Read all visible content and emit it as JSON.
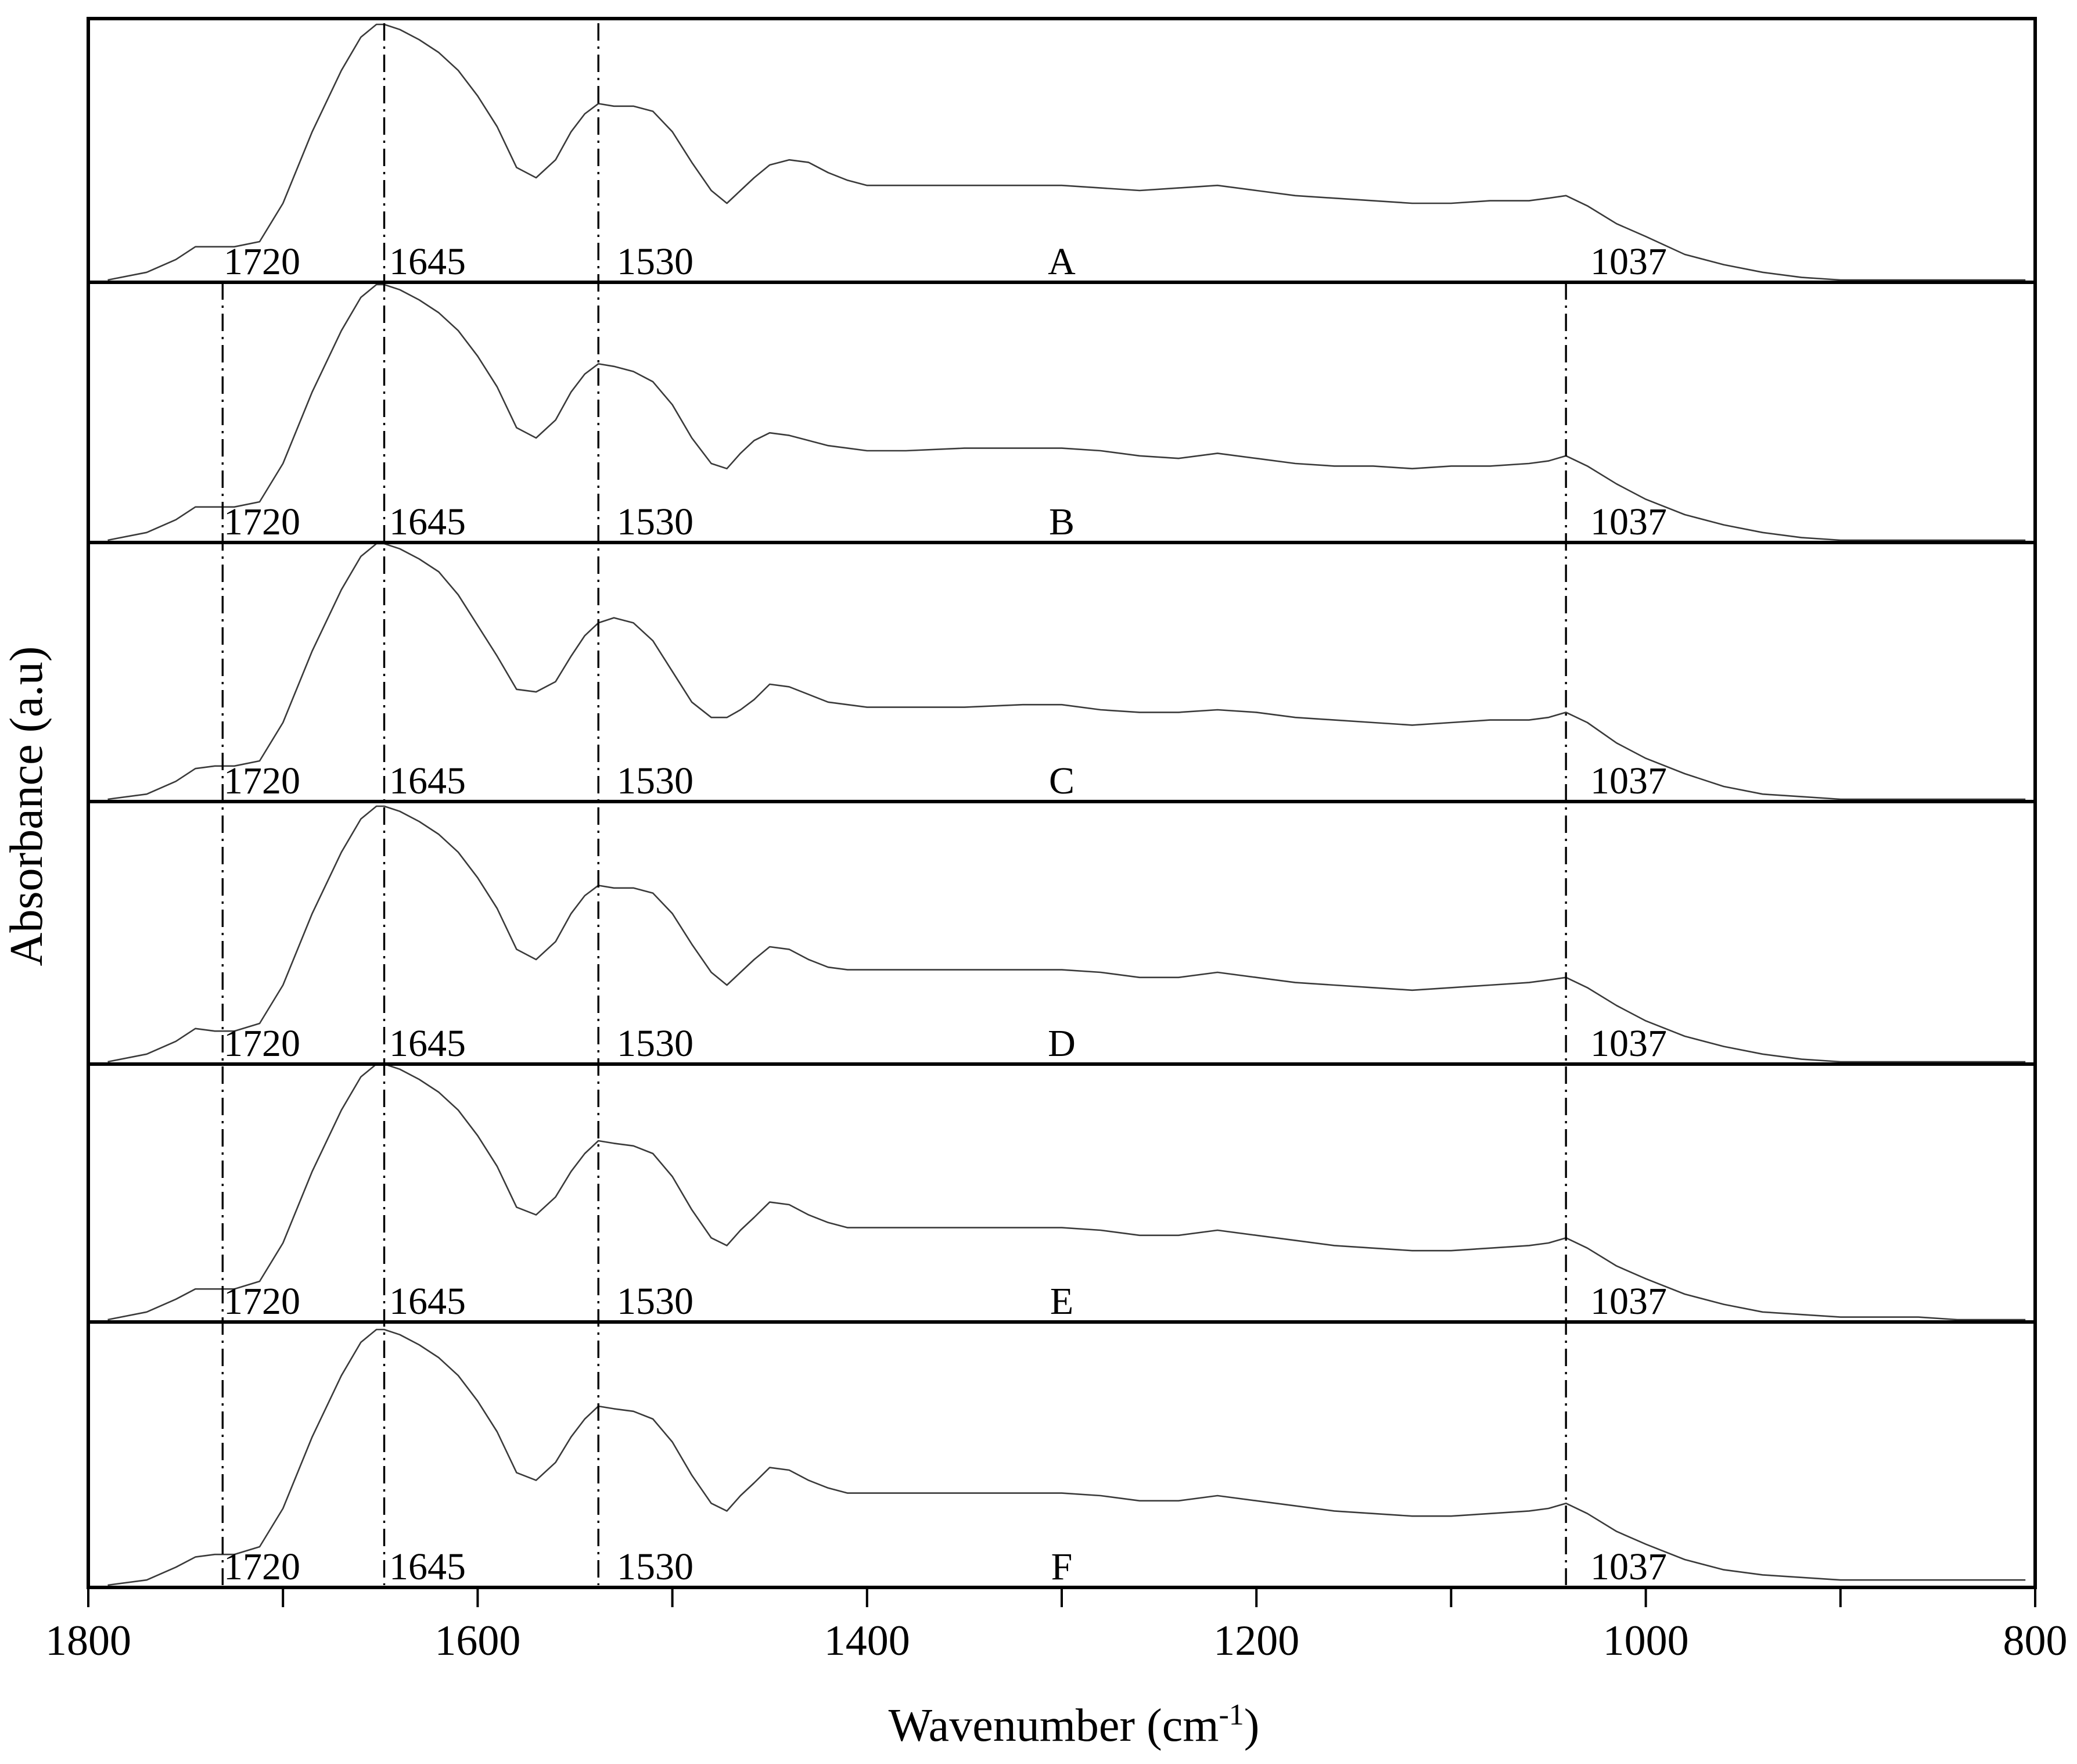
{
  "chart_data": {
    "type": "line",
    "layout": "stacked-panels",
    "xlabel_main": "Wavenumber (cm",
    "xlabel_sup": "-1",
    "xlabel_close": ")",
    "ylabel": "Absorbance (a.u)",
    "xlim": [
      1800,
      800
    ],
    "x_reversed": true,
    "xticks_major": [
      1800,
      1600,
      1400,
      1200,
      1000,
      800
    ],
    "xticks_minor": [
      1700,
      1500,
      1300,
      1100,
      900
    ],
    "grid": false,
    "reference_lines": [
      1731,
      1648,
      1538,
      1041
    ],
    "peak_labels": [
      "1720",
      "1645",
      "1530",
      "1037"
    ],
    "x": [
      1790,
      1770,
      1755,
      1745,
      1735,
      1725,
      1712,
      1700,
      1685,
      1670,
      1660,
      1652,
      1648,
      1640,
      1630,
      1620,
      1610,
      1600,
      1590,
      1580,
      1570,
      1560,
      1552,
      1545,
      1538,
      1530,
      1520,
      1510,
      1500,
      1490,
      1480,
      1472,
      1465,
      1458,
      1450,
      1440,
      1430,
      1420,
      1410,
      1400,
      1380,
      1350,
      1320,
      1300,
      1280,
      1260,
      1240,
      1220,
      1200,
      1180,
      1160,
      1140,
      1120,
      1100,
      1080,
      1060,
      1050,
      1041,
      1030,
      1015,
      1000,
      980,
      960,
      940,
      920,
      900,
      880,
      860,
      840,
      820,
      805
    ],
    "series": [
      {
        "name": "A",
        "values": [
          0.0,
          0.03,
          0.08,
          0.13,
          0.13,
          0.13,
          0.15,
          0.3,
          0.58,
          0.82,
          0.95,
          1.0,
          1.0,
          0.98,
          0.94,
          0.89,
          0.82,
          0.72,
          0.6,
          0.44,
          0.4,
          0.47,
          0.58,
          0.65,
          0.69,
          0.68,
          0.68,
          0.66,
          0.58,
          0.46,
          0.35,
          0.3,
          0.35,
          0.4,
          0.45,
          0.47,
          0.46,
          0.42,
          0.39,
          0.37,
          0.37,
          0.37,
          0.37,
          0.37,
          0.36,
          0.35,
          0.36,
          0.37,
          0.35,
          0.33,
          0.32,
          0.31,
          0.3,
          0.3,
          0.31,
          0.31,
          0.32,
          0.33,
          0.29,
          0.22,
          0.17,
          0.1,
          0.06,
          0.03,
          0.01,
          0.0,
          0.0,
          0.0,
          0.0,
          0.0,
          0.0
        ]
      },
      {
        "name": "B",
        "values": [
          0.0,
          0.03,
          0.08,
          0.13,
          0.13,
          0.13,
          0.15,
          0.3,
          0.58,
          0.82,
          0.95,
          1.0,
          1.0,
          0.98,
          0.94,
          0.89,
          0.82,
          0.72,
          0.6,
          0.44,
          0.4,
          0.47,
          0.58,
          0.65,
          0.69,
          0.68,
          0.66,
          0.62,
          0.53,
          0.4,
          0.3,
          0.28,
          0.34,
          0.39,
          0.42,
          0.41,
          0.39,
          0.37,
          0.36,
          0.35,
          0.35,
          0.36,
          0.36,
          0.36,
          0.35,
          0.33,
          0.32,
          0.34,
          0.32,
          0.3,
          0.29,
          0.29,
          0.28,
          0.29,
          0.29,
          0.3,
          0.31,
          0.33,
          0.29,
          0.22,
          0.16,
          0.1,
          0.06,
          0.03,
          0.01,
          0.0,
          0.0,
          0.0,
          0.0,
          0.0,
          0.0
        ]
      },
      {
        "name": "C",
        "values": [
          0.0,
          0.02,
          0.07,
          0.12,
          0.13,
          0.13,
          0.15,
          0.3,
          0.58,
          0.82,
          0.95,
          1.0,
          1.0,
          0.98,
          0.94,
          0.89,
          0.8,
          0.68,
          0.56,
          0.43,
          0.42,
          0.46,
          0.56,
          0.64,
          0.69,
          0.71,
          0.69,
          0.62,
          0.5,
          0.38,
          0.32,
          0.32,
          0.35,
          0.39,
          0.45,
          0.44,
          0.41,
          0.38,
          0.37,
          0.36,
          0.36,
          0.36,
          0.37,
          0.37,
          0.35,
          0.34,
          0.34,
          0.35,
          0.34,
          0.32,
          0.31,
          0.3,
          0.29,
          0.3,
          0.31,
          0.31,
          0.32,
          0.34,
          0.3,
          0.22,
          0.16,
          0.1,
          0.05,
          0.02,
          0.01,
          0.0,
          0.0,
          0.0,
          0.0,
          0.0,
          0.0
        ]
      },
      {
        "name": "D",
        "values": [
          0.0,
          0.03,
          0.08,
          0.13,
          0.12,
          0.12,
          0.15,
          0.3,
          0.58,
          0.82,
          0.95,
          1.0,
          1.0,
          0.98,
          0.94,
          0.89,
          0.82,
          0.72,
          0.6,
          0.44,
          0.4,
          0.47,
          0.58,
          0.65,
          0.69,
          0.68,
          0.68,
          0.66,
          0.58,
          0.46,
          0.35,
          0.3,
          0.35,
          0.4,
          0.45,
          0.44,
          0.4,
          0.37,
          0.36,
          0.36,
          0.36,
          0.36,
          0.36,
          0.36,
          0.35,
          0.33,
          0.33,
          0.35,
          0.33,
          0.31,
          0.3,
          0.29,
          0.28,
          0.29,
          0.3,
          0.31,
          0.32,
          0.33,
          0.29,
          0.22,
          0.16,
          0.1,
          0.06,
          0.03,
          0.01,
          0.0,
          0.0,
          0.0,
          0.0,
          0.0,
          0.0
        ]
      },
      {
        "name": "E",
        "values": [
          0.0,
          0.03,
          0.08,
          0.12,
          0.12,
          0.12,
          0.15,
          0.3,
          0.58,
          0.82,
          0.95,
          1.0,
          1.0,
          0.98,
          0.94,
          0.89,
          0.82,
          0.72,
          0.6,
          0.44,
          0.41,
          0.48,
          0.58,
          0.65,
          0.7,
          0.69,
          0.68,
          0.65,
          0.56,
          0.43,
          0.32,
          0.29,
          0.35,
          0.4,
          0.46,
          0.45,
          0.41,
          0.38,
          0.36,
          0.36,
          0.36,
          0.36,
          0.36,
          0.36,
          0.35,
          0.33,
          0.33,
          0.35,
          0.33,
          0.31,
          0.29,
          0.28,
          0.27,
          0.27,
          0.28,
          0.29,
          0.3,
          0.32,
          0.28,
          0.21,
          0.16,
          0.1,
          0.06,
          0.03,
          0.02,
          0.01,
          0.01,
          0.01,
          0.0,
          0.0,
          0.0
        ]
      },
      {
        "name": "F",
        "values": [
          0.0,
          0.02,
          0.07,
          0.11,
          0.12,
          0.12,
          0.15,
          0.3,
          0.58,
          0.82,
          0.95,
          1.0,
          1.0,
          0.98,
          0.94,
          0.89,
          0.82,
          0.72,
          0.6,
          0.44,
          0.41,
          0.48,
          0.58,
          0.65,
          0.7,
          0.69,
          0.68,
          0.65,
          0.56,
          0.43,
          0.32,
          0.29,
          0.35,
          0.4,
          0.46,
          0.45,
          0.41,
          0.38,
          0.36,
          0.36,
          0.36,
          0.36,
          0.36,
          0.36,
          0.35,
          0.33,
          0.33,
          0.35,
          0.33,
          0.31,
          0.29,
          0.28,
          0.27,
          0.27,
          0.28,
          0.29,
          0.3,
          0.32,
          0.28,
          0.21,
          0.16,
          0.1,
          0.06,
          0.04,
          0.03,
          0.02,
          0.02,
          0.02,
          0.02,
          0.02,
          0.02
        ]
      }
    ]
  }
}
